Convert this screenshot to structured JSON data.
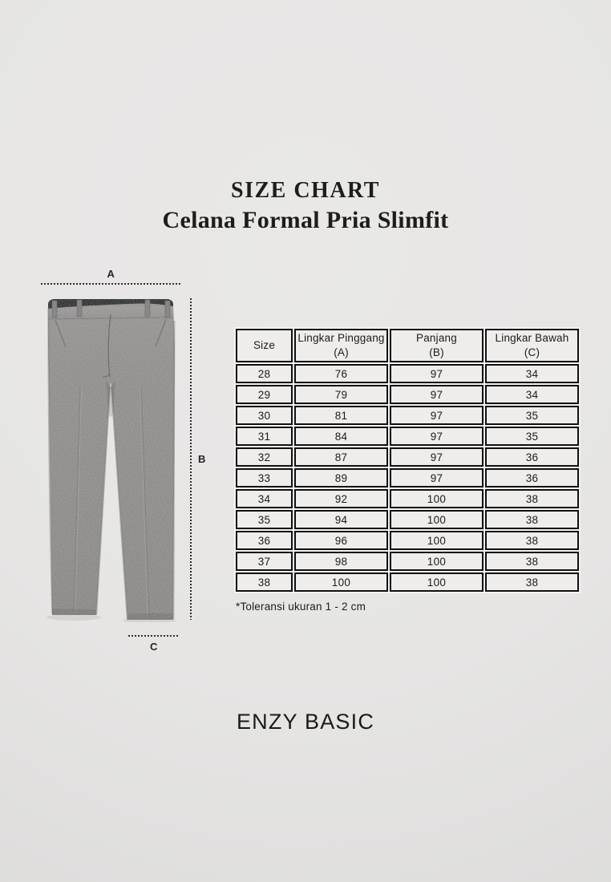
{
  "header": {
    "title": "SIZE CHART",
    "subtitle": "Celana Formal Pria Slimfit"
  },
  "diagram": {
    "label_a": "A",
    "label_b": "B",
    "label_c": "C"
  },
  "table": {
    "header_lines": [
      [
        "Size"
      ],
      [
        "Lingkar Pinggang",
        "(A)"
      ],
      [
        "Panjang",
        "(B)"
      ],
      [
        "Lingkar Bawah",
        "(C)"
      ]
    ],
    "note": "*Toleransi ukuran 1 - 2 cm"
  },
  "chart_data": {
    "type": "table",
    "title": "SIZE CHART",
    "subtitle": "Celana Formal Pria Slimfit",
    "columns": [
      "Size",
      "Lingkar Pinggang (A)",
      "Panjang (B)",
      "Lingkar Bawah (C)"
    ],
    "rows": [
      [
        "28",
        "76",
        "97",
        "34"
      ],
      [
        "29",
        "79",
        "97",
        "34"
      ],
      [
        "30",
        "81",
        "97",
        "35"
      ],
      [
        "31",
        "84",
        "97",
        "35"
      ],
      [
        "32",
        "87",
        "97",
        "36"
      ],
      [
        "33",
        "89",
        "97",
        "36"
      ],
      [
        "34",
        "92",
        "100",
        "38"
      ],
      [
        "35",
        "94",
        "100",
        "38"
      ],
      [
        "36",
        "96",
        "100",
        "38"
      ],
      [
        "37",
        "98",
        "100",
        "38"
      ],
      [
        "38",
        "100",
        "100",
        "38"
      ]
    ],
    "note": "*Toleransi ukuran 1 - 2 cm"
  },
  "footer": {
    "brand": "ENZY BASIC"
  },
  "colors": {
    "background": "#e6e5e4",
    "table_border": "#101010",
    "cell_background": "#eeedec",
    "text": "#1c1b1a",
    "pants_gray": "#8b8988",
    "waistband_dark": "#26282a"
  }
}
